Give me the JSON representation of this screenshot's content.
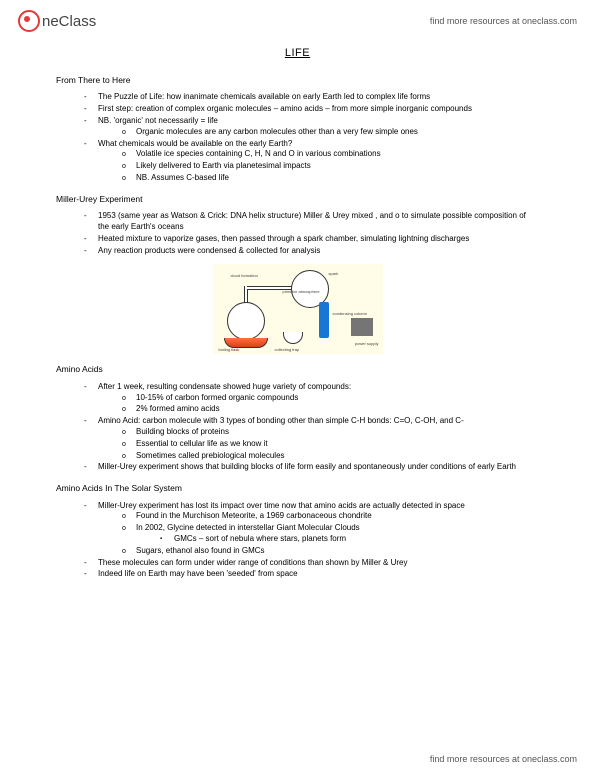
{
  "header": {
    "logo_text": "neClass",
    "link_text": "find more resources at oneclass.com"
  },
  "title": "LIFE",
  "sections": [
    {
      "heading": "From There to Here",
      "items": [
        {
          "t": "The Puzzle of Life: how inanimate chemicals available on early Earth led to complex life forms"
        },
        {
          "t": "First step: creation of complex organic molecules – amino acids – from more simple inorganic compounds"
        },
        {
          "t": "NB. 'organic' not necessarily = life",
          "sub": [
            {
              "t": "Organic molecules are any carbon molecules other than a very few simple ones"
            }
          ]
        },
        {
          "t": "What chemicals would be available on the early Earth?",
          "sub": [
            {
              "t": "Volatile ice species containing C, H, N and O in various combinations"
            },
            {
              "t": "Likely delivered to Earth via planetesimal impacts"
            },
            {
              "t": "NB. Assumes C-based life"
            }
          ]
        }
      ]
    },
    {
      "heading": "Miller-Urey Experiment",
      "items": [
        {
          "t": "1953 (same year as Watson & Crick: DNA helix structure) Miller & Urey mixed ,  and o to simulate possible composition of the early Earth's oceans"
        },
        {
          "t": "Heated mixture to vaporize gases, then passed through a spark chamber, simulating lightning discharges"
        },
        {
          "t": "Any reaction products were condensed & collected for analysis"
        }
      ],
      "diagram": true
    },
    {
      "heading": "Amino Acids",
      "items": [
        {
          "t": "After 1 week, resulting condensate showed huge variety of compounds:",
          "sub": [
            {
              "t": "10-15% of carbon formed organic compounds"
            },
            {
              "t": "2% formed amino acids"
            }
          ]
        },
        {
          "t": "Amino Acid: carbon molecule with 3 types of bonding other than simple C-H bonds: C=O, C-OH, and C-",
          "sub": [
            {
              "t": "Building blocks of proteins"
            },
            {
              "t": "Essential to cellular life as we know it"
            },
            {
              "t": "Sometimes called prebiological molecules"
            }
          ]
        },
        {
          "t": "Miller-Urey experiment shows that building blocks of life form easily and spontaneously under conditions of early Earth"
        }
      ]
    },
    {
      "heading": "Amino Acids In The Solar System",
      "items": [
        {
          "t": "Miller-Urey experiment has lost its impact over time now that amino acids are actually detected in space",
          "sub": [
            {
              "t": "Found in the Murchison Meteorite, a 1969 carbonaceous chondrite"
            },
            {
              "t": "In 2002, Glycine detected in interstellar Giant Molecular Clouds",
              "sub": [
                {
                  "t": "GMCs – sort of nebula where stars, planets form"
                }
              ]
            },
            {
              "t": "Sugars, ethanol also found in GMCs"
            }
          ]
        },
        {
          "t": "These molecules can form under wider range of conditions than shown by Miller & Urey"
        },
        {
          "t": "Indeed life on Earth may have been 'seeded' from space"
        }
      ]
    }
  ],
  "diagram": {
    "bg": "#fffde7",
    "labels": {
      "l1": "boiling flask",
      "l2": "collecting trap",
      "l3": "condensing column",
      "l4": "spark",
      "l5": "power supply",
      "l6": "primitive atmosphere",
      "l7": "cloud formation"
    }
  },
  "footer": "find more resources at oneclass.com"
}
